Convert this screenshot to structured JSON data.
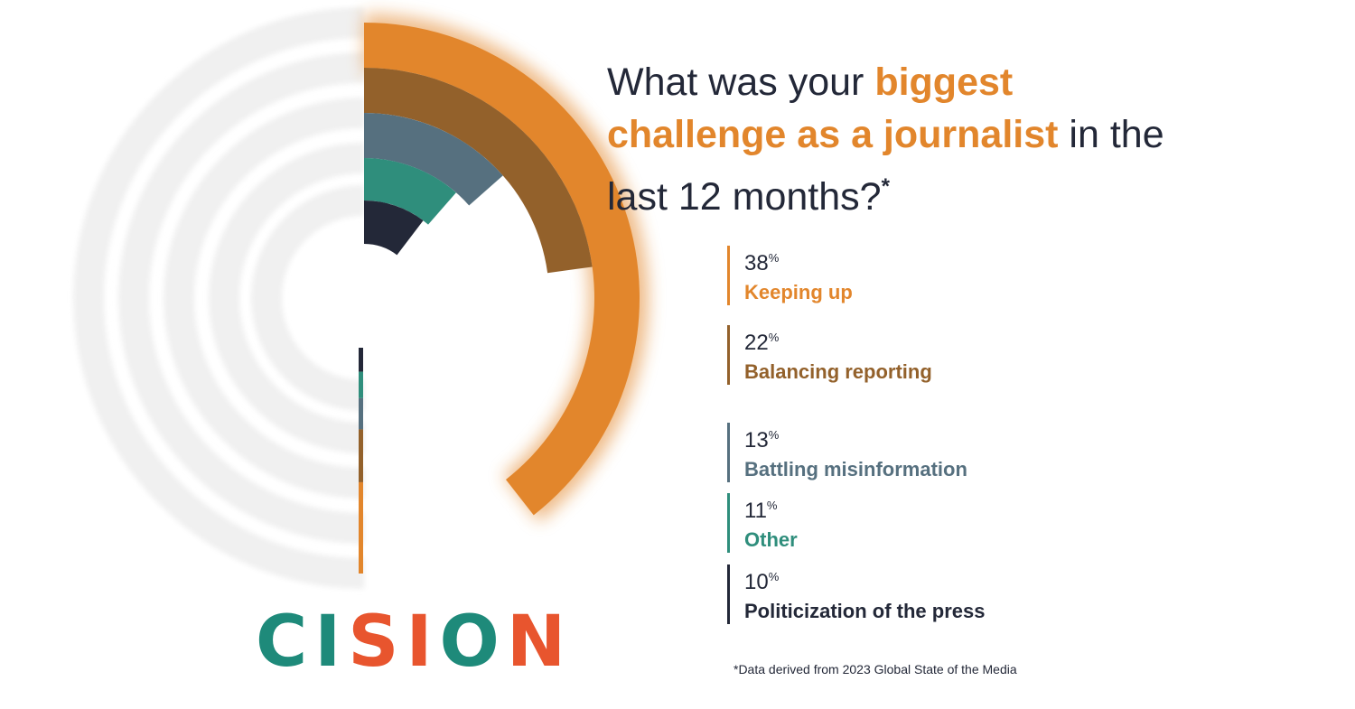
{
  "title": {
    "part1": "What was your ",
    "highlight": "biggest challenge as a journalist",
    "part2": " in the last 12 months?",
    "asterisk": "*"
  },
  "chart_data": {
    "type": "pie",
    "title": "What was your biggest challenge as a journalist in the last 12 months?",
    "categories": [
      "Keeping up",
      "Balancing reporting",
      "Battling misinformation",
      "Other",
      "Politicization of the press"
    ],
    "values": [
      38,
      22,
      13,
      11,
      10
    ],
    "unit": "%",
    "colors": [
      "#E2862C",
      "#93612B",
      "#56707F",
      "#2F8E7C",
      "#232838"
    ]
  },
  "legend": [
    {
      "value": "38",
      "unit": "%",
      "label": "Keeping up",
      "color": "#E2862C"
    },
    {
      "value": "22",
      "unit": "%",
      "label": "Balancing reporting",
      "color": "#93612B"
    },
    {
      "value": "13",
      "unit": "%",
      "label": "Battling misinformation",
      "color": "#56707F"
    },
    {
      "value": "11",
      "unit": "%",
      "label": "Other",
      "color": "#2F8E7C"
    },
    {
      "value": "10",
      "unit": "%",
      "label": "Politicization of the press",
      "color": "#232838"
    }
  ],
  "footnote": "*Data derived from 2023 Global State of the Media",
  "logo": {
    "text": "CISION",
    "letter_colors": [
      "#1E8A7A",
      "#1E8A7A",
      "#E8552E",
      "#E8552E",
      "#1E8A7A",
      "#E8552E"
    ]
  }
}
